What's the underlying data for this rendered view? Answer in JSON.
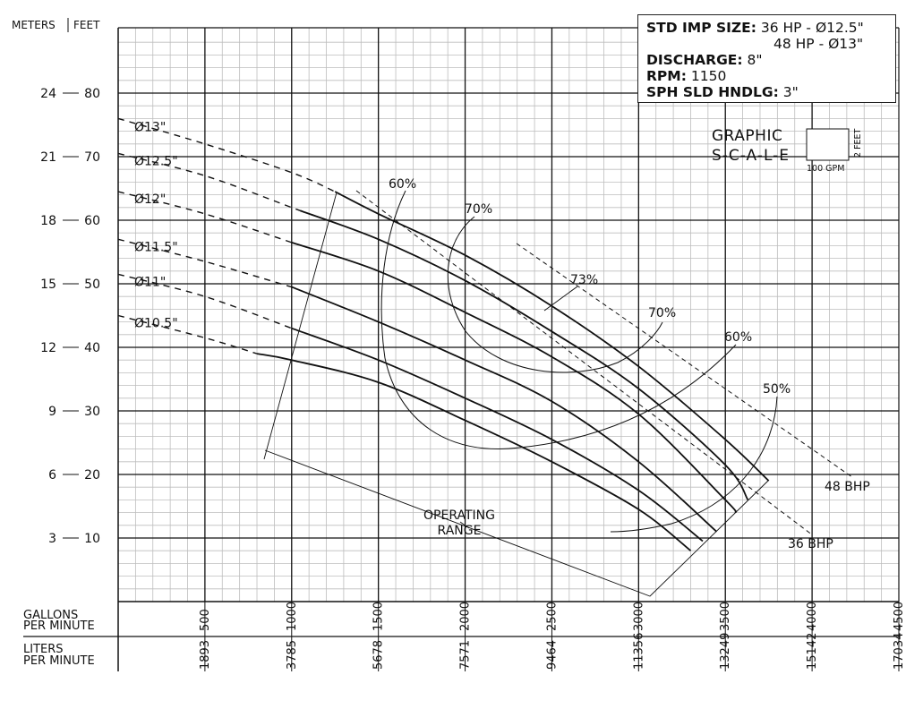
{
  "chart_data": {
    "type": "line",
    "title": "",
    "left_axis_headers": [
      "METERS",
      "FEET"
    ],
    "y_ticks_feet": [
      10,
      20,
      30,
      40,
      50,
      60,
      70,
      80
    ],
    "y_ticks_meters": [
      3,
      6,
      9,
      12,
      15,
      18,
      21,
      24
    ],
    "ylim_feet": [
      0,
      90
    ],
    "xlim_gpm": [
      0,
      4500
    ],
    "x_label_gpm": "GALLONS PER MINUTE",
    "x_label_gpm_lines": [
      "GALLONS",
      "PER MINUTE"
    ],
    "x_ticks_gpm": [
      500,
      1000,
      1500,
      2000,
      2500,
      3000,
      3500,
      4000,
      4500
    ],
    "x_label_lpm": "LITERS PER MINUTE",
    "x_label_lpm_lines": [
      "LITERS",
      "PER MINUTE"
    ],
    "x_ticks_lpm": [
      1893,
      3785,
      5678,
      7571,
      9464,
      11356,
      13249,
      15142,
      17034
    ],
    "grid": true,
    "series": [
      {
        "name": "Ø13\"",
        "x": [
          0,
          500,
          1000,
          1250,
          1500,
          2000,
          2500,
          3000,
          3500,
          3750
        ],
        "y": [
          76,
          72,
          67.5,
          64.5,
          61,
          54.5,
          46.5,
          37,
          25.5,
          19
        ]
      },
      {
        "name": "Ø12.5\"",
        "x": [
          0,
          500,
          1000,
          1050,
          1500,
          2000,
          2500,
          3000,
          3500,
          3630
        ],
        "y": [
          70.5,
          67,
          62,
          61.5,
          57,
          50.5,
          42.5,
          33.5,
          21.5,
          16
        ]
      },
      {
        "name": "Ø12\"",
        "x": [
          0,
          500,
          1000,
          1500,
          2000,
          2500,
          3000,
          3500,
          3560
        ],
        "y": [
          64.5,
          61,
          56.5,
          52,
          45.5,
          38.5,
          29.5,
          16,
          14
        ]
      },
      {
        "name": "Ø11.5\"",
        "x": [
          0,
          500,
          1000,
          1500,
          2000,
          2500,
          3000,
          3450
        ],
        "y": [
          57,
          53.5,
          49.5,
          44,
          38,
          31.5,
          22,
          11
        ]
      },
      {
        "name": "Ø11\"",
        "x": [
          0,
          500,
          1000,
          1500,
          2000,
          2500,
          3000,
          3370
        ],
        "y": [
          51.5,
          48,
          43,
          38,
          32,
          25.5,
          17.5,
          9.5
        ]
      },
      {
        "name": "Ø10.5\"",
        "x": [
          0,
          500,
          800,
          1000,
          1500,
          2000,
          2500,
          3000,
          3300
        ],
        "y": [
          45,
          41.5,
          39,
          38,
          34.5,
          28.5,
          22,
          14.5,
          8
        ]
      }
    ],
    "efficiency_labels": [
      "60%",
      "70%",
      "73%",
      "70%",
      "60%",
      "50%"
    ],
    "bhp_labels": [
      "48 BHP",
      "36 BHP"
    ],
    "annotations": [
      "OPERATING",
      "RANGE"
    ],
    "graphic_scale": {
      "title": "GRAPHIC",
      "subtitle": "S-C-A-L-E",
      "x_unit": "100 GPM",
      "y_unit": "2 FEET"
    }
  },
  "spec_box": {
    "impeller_label": "STD IMP SIZE:",
    "impeller_line1": "36 HP - Ø12.5\"",
    "impeller_line2": "48 HP - Ø13\"",
    "discharge_label": "DISCHARGE:",
    "discharge_value": "8\"",
    "rpm_label": "RPM:",
    "rpm_value": "1150",
    "solids_label": "SPH SLD HNDLG:",
    "solids_value": "3\""
  },
  "colors": {
    "line": "#111111",
    "minor_grid": "#bdbdbd",
    "major_grid": "#111111"
  }
}
